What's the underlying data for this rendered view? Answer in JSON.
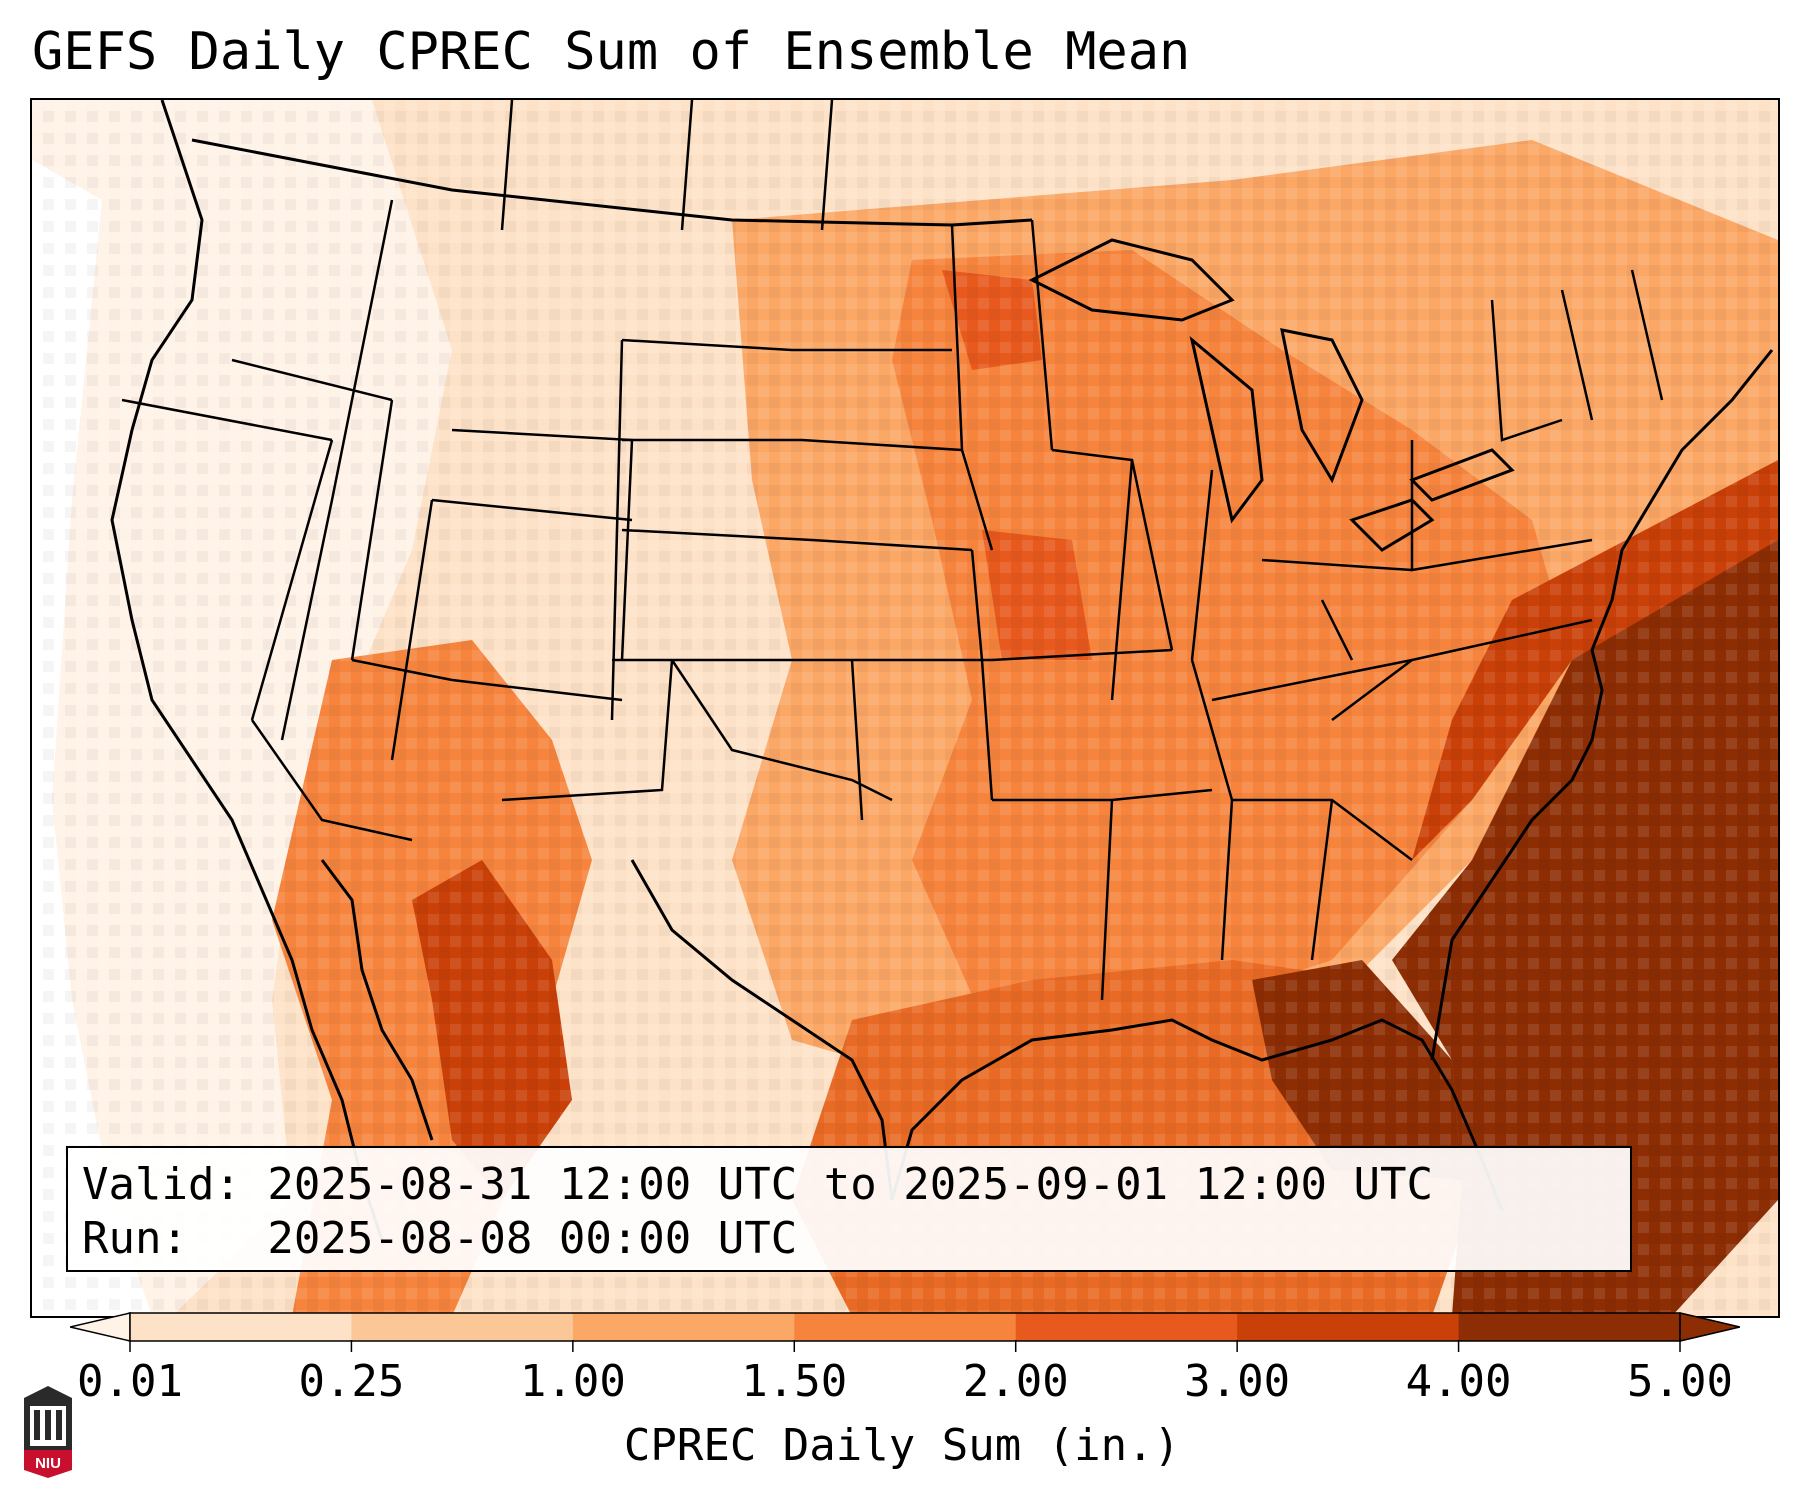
{
  "title": "GEFS Daily CPREC Sum of Ensemble Mean",
  "info": {
    "valid_line": "Valid: 2025-08-31 12:00 UTC to 2025-09-01 12:00 UTC",
    "run_line": "Run:   2025-08-08 00:00 UTC"
  },
  "colorbar": {
    "label": "CPREC Daily Sum (in.)",
    "ticks": [
      "0.01",
      "0.25",
      "1.00",
      "1.50",
      "2.00",
      "3.00",
      "4.00",
      "5.00"
    ],
    "colors": [
      "#fff3e8",
      "#fde2c8",
      "#fcc797",
      "#fba766",
      "#f6843d",
      "#e7591d",
      "#c94008",
      "#8c2d04"
    ],
    "extend": "both"
  },
  "logo": {
    "text": "NIU"
  },
  "map_colors": {
    "ocean_gulf": "#e86a24",
    "atlantic_heavy": "#8c2d04",
    "land_light": "#fde7d2"
  }
}
